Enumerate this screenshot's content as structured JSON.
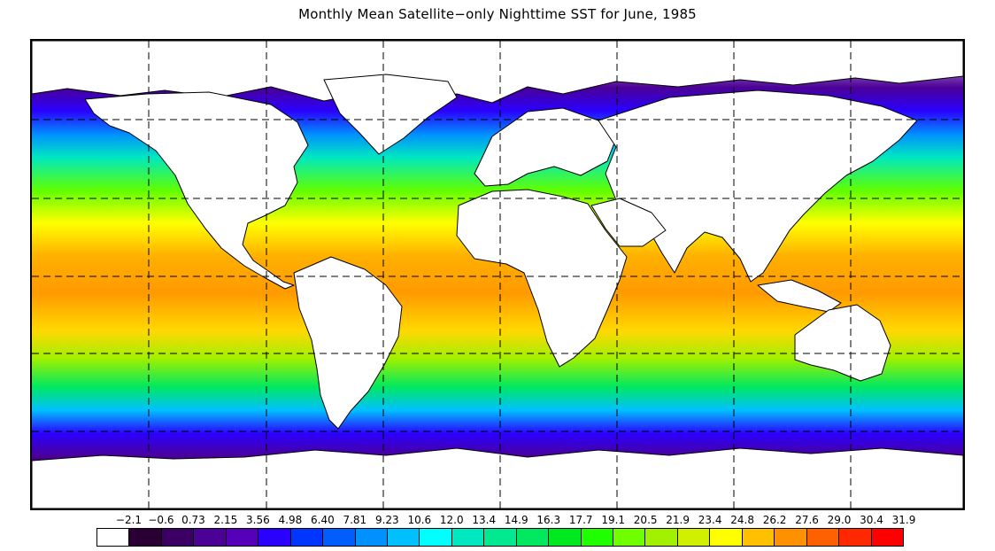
{
  "title": "Monthly Mean Satellite−only Nighttime SST for June, 1985",
  "map": {
    "projection": "equirectangular",
    "grid_style": "dashed",
    "land_color": "#ffffff",
    "coastline_color": "#000000"
  },
  "colorbar": {
    "labels": [
      "−2.1",
      "−0.6",
      "0.73",
      "2.15",
      "3.56",
      "4.98",
      "6.40",
      "7.81",
      "9.23",
      "10.6",
      "12.0",
      "13.4",
      "14.9",
      "16.3",
      "17.7",
      "19.1",
      "20.5",
      "21.9",
      "23.4",
      "24.8",
      "26.2",
      "27.6",
      "29.0",
      "30.4",
      "31.9"
    ],
    "colors": [
      "#ffffff",
      "#2a0034",
      "#3c0064",
      "#4b0096",
      "#5500b8",
      "#2a00ff",
      "#0036ff",
      "#005eff",
      "#0090ff",
      "#00c0ff",
      "#00ffff",
      "#00e8c0",
      "#00e890",
      "#00e860",
      "#00e820",
      "#20ff00",
      "#70ff00",
      "#a0f000",
      "#d0f000",
      "#ffff00",
      "#ffc000",
      "#ff9000",
      "#ff6000",
      "#ff2800",
      "#ff0000"
    ]
  }
}
